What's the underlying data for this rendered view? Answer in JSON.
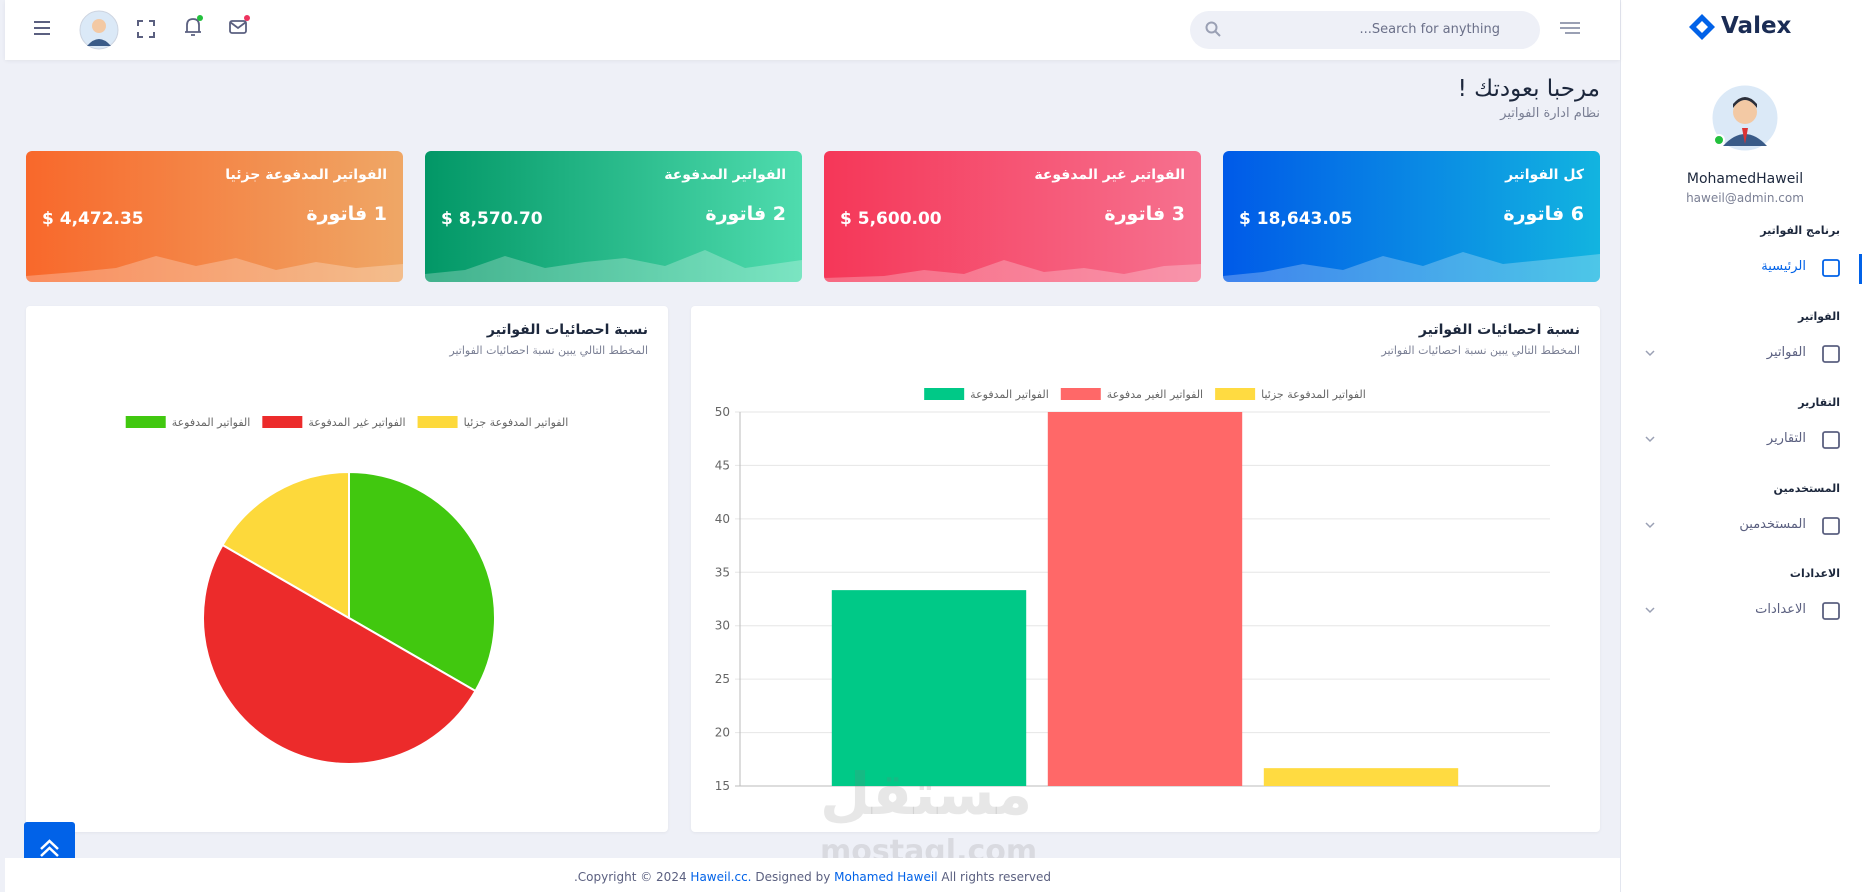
{
  "sidebar": {
    "logo": "Valex",
    "user": {
      "name": "MohamedHaweil",
      "email": "haweil@admin.com"
    },
    "sections": [
      {
        "title": "برنامج الفواتير",
        "item": "الرئيسية"
      },
      {
        "title": "الفواتير",
        "item": "الفواتير"
      },
      {
        "title": "التقارير",
        "item": "التقارير"
      },
      {
        "title": "المستخدمين",
        "item": "المستخدمين"
      },
      {
        "title": "الاعدادات",
        "item": "الاعدادات"
      }
    ]
  },
  "header": {
    "search_placeholder": "Search for anything..."
  },
  "welcome": {
    "title": "مرحبا بعودتك !",
    "subtitle": "نظام ادارة الفواتير"
  },
  "cards": [
    {
      "title": "كل الفواتير",
      "count": "6 فاتورة",
      "amount": "$ 18,643.05"
    },
    {
      "title": "الفواتير غير المدفوعة",
      "count": "3 فاتورة",
      "amount": "$ 5,600.00"
    },
    {
      "title": "الفواتير المدفوعة",
      "count": "2 فاتورة",
      "amount": "$ 8,570.70"
    },
    {
      "title": "الفواتير المدفوعة جزئيا",
      "count": "1 فاتورة",
      "amount": "$ 4,472.35"
    }
  ],
  "chart_data": [
    {
      "type": "bar",
      "title": "نسبة احصائيات الفواتير",
      "subtitle": "المخطط التالي يبين نسبة احصائيات الفواتير",
      "categories": [
        null
      ],
      "series": [
        {
          "name": "الفواتير المدفوعة",
          "color": "#00c987",
          "values": [
            33.33
          ]
        },
        {
          "name": "الفواتير الغير مدفوعة",
          "color": "#ff6868",
          "values": [
            50
          ]
        },
        {
          "name": "الفواتير المدفوعة جزئيا",
          "color": "#ffdb41",
          "values": [
            16.67
          ]
        }
      ],
      "ylim": [
        15,
        50
      ],
      "yticks": [
        15,
        20,
        25,
        30,
        35,
        40,
        45,
        50
      ],
      "grid": true,
      "legend": "top"
    },
    {
      "type": "pie",
      "title": "نسبة احصائيات الفواتير",
      "subtitle": "المخطط التالي يبين نسبة احصائيات الفواتير",
      "categories": [
        "الفواتير المدفوعة",
        "الفواتير غير المدفوعة",
        "الفواتير المدفوعة جزئيا"
      ],
      "values": [
        33.33,
        50,
        16.67
      ],
      "colors": [
        "#41c80f",
        "#ec2b2b",
        "#fdd93b"
      ],
      "legend": "top"
    }
  ],
  "footer": {
    "copyright": "Copyright © 2024",
    "site": "Haweil.cc.",
    "designed": "Designed by",
    "designer": "Mohamed Haweil",
    "rights": "All rights reserved."
  },
  "watermark": {
    "arabic": "مستقل",
    "latin": "mostaql.com"
  }
}
